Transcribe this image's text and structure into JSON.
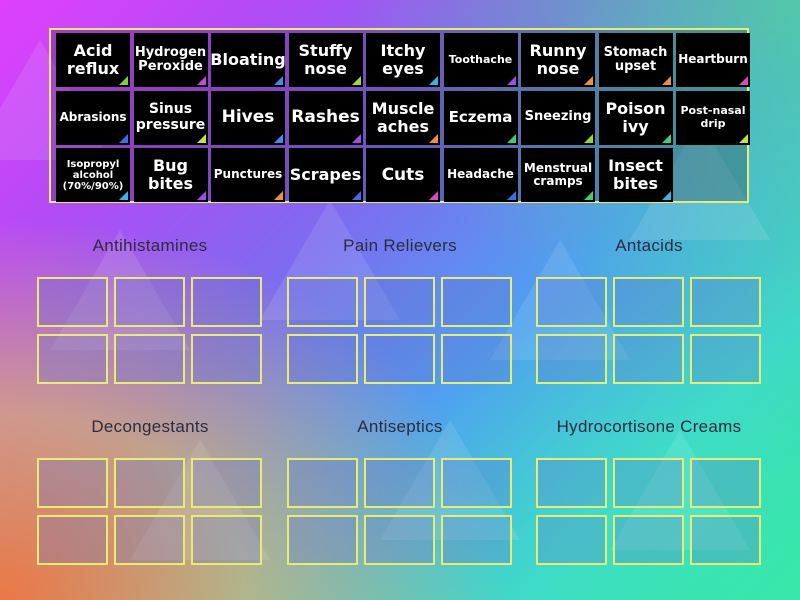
{
  "bank": {
    "tiles": [
      {
        "label": "Acid reflux",
        "tri": "#7fd13b"
      },
      {
        "label": "Hydrogen Peroxide",
        "tri": "#c64ad8"
      },
      {
        "label": "Bloating",
        "tri": "#3c8ee8"
      },
      {
        "label": "Stuffy nose",
        "tri": "#9ed83a"
      },
      {
        "label": "Itchy eyes",
        "tri": "#3bb3e3"
      },
      {
        "label": "Toothache",
        "tri": "#9b4fe6"
      },
      {
        "label": "Runny nose",
        "tri": "#f0913a"
      },
      {
        "label": "Stomach upset",
        "tri": "#f0913a"
      },
      {
        "label": "Heartburn",
        "tri": "#d84ab8"
      },
      {
        "label": "Abrasions",
        "tri": "#3b6ee8"
      },
      {
        "label": "Sinus pressure",
        "tri": "#c8e03a"
      },
      {
        "label": "Hives",
        "tri": "#3c8ee8"
      },
      {
        "label": "Rashes",
        "tri": "#a24ee6"
      },
      {
        "label": "Muscle aches",
        "tri": "#f0913a"
      },
      {
        "label": "Eczema",
        "tri": "#3ad070"
      },
      {
        "label": "Sneezing",
        "tri": "#8ad83a"
      },
      {
        "label": "Poison ivy",
        "tri": "#3ad070"
      },
      {
        "label": "Post-nasal drip",
        "tri": "#c8e03a"
      },
      {
        "label": "Isopropyl alcohol (70%/90%)",
        "tri": "#3bb3e3"
      },
      {
        "label": "Bug bites",
        "tri": "#9b4fe6"
      },
      {
        "label": "Punctures",
        "tri": "#f0913a"
      },
      {
        "label": "Scrapes",
        "tri": "#3b6ee8"
      },
      {
        "label": "Cuts",
        "tri": "#d84ab8"
      },
      {
        "label": "Headache",
        "tri": "#3b6ee8"
      },
      {
        "label": "Menstrual cramps",
        "tri": "#3ad070"
      },
      {
        "label": "Insect bites",
        "tri": "#3bb3e3"
      }
    ]
  },
  "categories": [
    {
      "title": "Antihistamines"
    },
    {
      "title": "Pain Relievers"
    },
    {
      "title": "Antacids"
    },
    {
      "title": "Decongestants"
    },
    {
      "title": "Antiseptics"
    },
    {
      "title": "Hydrocortisone Creams"
    }
  ]
}
